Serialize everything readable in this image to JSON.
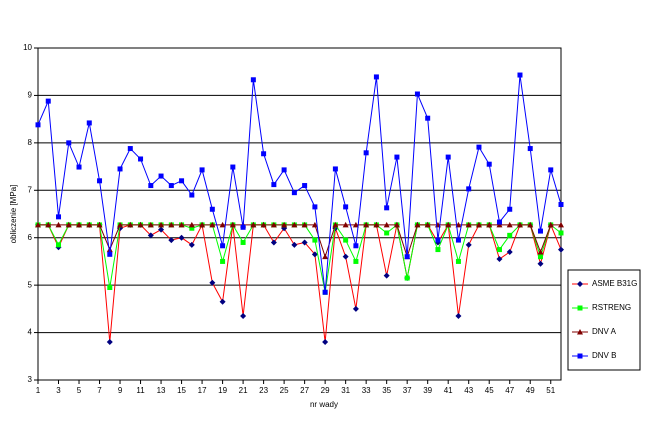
{
  "chart_data": {
    "type": "line",
    "x_label": "nr wady",
    "y_label": "obliczenie [MPa]",
    "x": [
      1,
      2,
      3,
      4,
      5,
      6,
      7,
      8,
      9,
      10,
      11,
      12,
      13,
      14,
      15,
      16,
      17,
      18,
      19,
      20,
      21,
      22,
      23,
      24,
      25,
      26,
      27,
      28,
      29,
      30,
      31,
      32,
      33,
      34,
      35,
      36,
      37,
      38,
      39,
      40,
      41,
      42,
      43,
      44,
      45,
      46,
      47,
      48,
      49,
      50,
      51,
      52
    ],
    "xlim": [
      1,
      52
    ],
    "xticks": [
      1,
      3,
      5,
      7,
      9,
      11,
      13,
      15,
      17,
      19,
      21,
      23,
      25,
      27,
      29,
      31,
      33,
      35,
      37,
      39,
      41,
      43,
      45,
      47,
      49,
      51
    ],
    "ylim": [
      3,
      10
    ],
    "yticks": [
      3,
      4,
      5,
      6,
      7,
      8,
      9,
      10
    ],
    "grid": true,
    "legend": "right",
    "series": [
      {
        "name": "ASME B31G",
        "color": "#ff0000",
        "marker": "diamond",
        "marker_color": "#000080",
        "values": [
          6.27,
          6.27,
          5.8,
          6.27,
          6.27,
          6.27,
          6.27,
          3.8,
          6.2,
          6.27,
          6.27,
          6.05,
          6.17,
          5.95,
          6.0,
          5.85,
          6.27,
          5.05,
          4.65,
          6.27,
          4.35,
          6.27,
          6.27,
          5.9,
          6.2,
          5.85,
          5.9,
          5.65,
          3.8,
          6.2,
          5.6,
          4.5,
          6.27,
          6.27,
          5.2,
          6.27,
          5.15,
          6.27,
          6.27,
          5.9,
          6.27,
          4.35,
          5.85,
          6.27,
          6.27,
          5.55,
          5.7,
          6.27,
          6.27,
          5.45,
          6.27,
          5.75
        ]
      },
      {
        "name": "RSTRENG",
        "color": "#00ff00",
        "marker": "square",
        "marker_color": "#00ff00",
        "values": [
          6.27,
          6.27,
          5.85,
          6.27,
          6.27,
          6.27,
          6.27,
          4.95,
          6.27,
          6.27,
          6.27,
          6.27,
          6.27,
          6.27,
          6.27,
          6.2,
          6.27,
          6.27,
          5.5,
          6.27,
          5.9,
          6.27,
          6.27,
          6.27,
          6.27,
          6.27,
          6.27,
          5.95,
          4.85,
          6.27,
          5.95,
          5.5,
          6.27,
          6.27,
          6.1,
          6.27,
          5.15,
          6.27,
          6.27,
          5.75,
          6.27,
          5.5,
          6.27,
          6.27,
          6.27,
          5.75,
          6.05,
          6.27,
          6.27,
          5.6,
          6.27,
          6.1
        ]
      },
      {
        "name": "DNV A",
        "color": "#800000",
        "marker": "triangle",
        "marker_color": "#800000",
        "values": [
          6.27,
          6.27,
          6.27,
          6.27,
          6.27,
          6.27,
          6.27,
          5.75,
          6.27,
          6.27,
          6.27,
          6.27,
          6.27,
          6.27,
          6.27,
          6.27,
          6.27,
          6.27,
          6.27,
          6.27,
          6.27,
          6.27,
          6.27,
          6.27,
          6.27,
          6.27,
          6.27,
          6.27,
          5.6,
          6.27,
          6.27,
          6.27,
          6.27,
          6.27,
          6.27,
          6.27,
          5.6,
          6.27,
          6.27,
          6.27,
          6.27,
          6.27,
          6.27,
          6.27,
          6.27,
          6.27,
          6.27,
          6.27,
          6.27,
          5.7,
          6.27,
          6.27
        ]
      },
      {
        "name": "DNV B",
        "color": "#0000ff",
        "marker": "square",
        "marker_color": "#0000ff",
        "values": [
          8.38,
          8.88,
          6.44,
          8.0,
          7.49,
          8.42,
          7.2,
          5.65,
          7.45,
          7.88,
          7.66,
          7.1,
          7.3,
          7.1,
          7.2,
          6.9,
          7.43,
          6.6,
          5.83,
          7.49,
          6.22,
          9.33,
          7.77,
          7.12,
          7.43,
          6.95,
          7.1,
          6.65,
          4.85,
          7.45,
          6.65,
          5.83,
          7.79,
          9.39,
          6.63,
          7.7,
          5.6,
          9.03,
          8.52,
          5.95,
          7.7,
          5.95,
          7.03,
          7.91,
          7.55,
          6.33,
          6.6,
          9.43,
          7.88,
          6.14,
          7.43,
          6.7
        ]
      }
    ]
  }
}
